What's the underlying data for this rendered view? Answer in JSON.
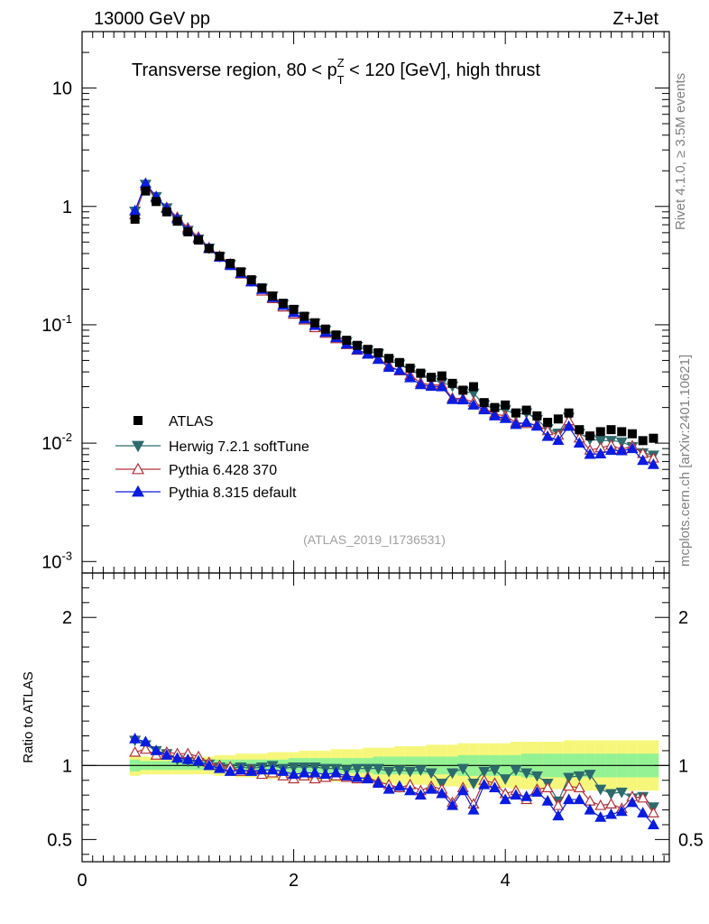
{
  "header": {
    "left": "13000 GeV pp",
    "right": "Z+Jet"
  },
  "side_texts": {
    "rivet": "Rivet 4.1.0, ≥ 3.5M events",
    "source": "mcplots.cern.ch [arXiv:2401.10621]"
  },
  "chart_data": {
    "type": "scatter",
    "title": "Transverse region, 80 < p_T^Z < 120 [GeV], high thrust",
    "title_parts": {
      "pre": "Transverse region, 80 < p",
      "sup": "Z",
      "sub": "T",
      "post": " < 120 [GeV], high thrust"
    },
    "watermark": "(ATLAS_2019_I1736531)",
    "xlim": [
      0,
      5.55
    ],
    "ylim": [
      0.0008,
      30
    ],
    "yscale": "log",
    "ratio_ylabel": "Ratio to ATLAS",
    "ratio_ylim": [
      0.35,
      2.3
    ],
    "x_ticks": [
      "0",
      "2",
      "4"
    ],
    "y_ticks": [
      {
        "base": "10",
        "exp": "-3"
      },
      {
        "base": "10",
        "exp": "-2"
      },
      {
        "base": "10",
        "exp": "-1"
      },
      {
        "base": "1",
        "exp": ""
      },
      {
        "base": "10",
        "exp": ""
      }
    ],
    "ratio_ticks": [
      "0.5",
      "1",
      "2"
    ],
    "legend": [
      "ATLAS",
      "Herwig 7.2.1 softTune",
      "Pythia 6.428 370",
      "Pythia 8.315 default"
    ],
    "x": [
      0.5,
      0.6,
      0.7,
      0.8,
      0.9,
      1.0,
      1.1,
      1.2,
      1.3,
      1.4,
      1.5,
      1.6,
      1.7,
      1.8,
      1.9,
      2.0,
      2.1,
      2.2,
      2.3,
      2.4,
      2.5,
      2.6,
      2.7,
      2.8,
      2.9,
      3.0,
      3.1,
      3.2,
      3.3,
      3.4,
      3.5,
      3.6,
      3.7,
      3.8,
      3.9,
      4.0,
      4.1,
      4.2,
      4.3,
      4.4,
      4.5,
      4.6,
      4.7,
      4.8,
      4.9,
      5.0,
      5.1,
      5.2,
      5.3,
      5.4
    ],
    "series": [
      {
        "name": "ATLAS",
        "color": "#000000",
        "marker": "square",
        "values": [
          0.78,
          1.35,
          1.1,
          0.9,
          0.75,
          0.61,
          0.52,
          0.44,
          0.38,
          0.33,
          0.28,
          0.24,
          0.205,
          0.175,
          0.152,
          0.135,
          0.118,
          0.104,
          0.092,
          0.082,
          0.074,
          0.067,
          0.062,
          0.058,
          0.052,
          0.048,
          0.043,
          0.039,
          0.036,
          0.037,
          0.032,
          0.028,
          0.03,
          0.022,
          0.02,
          0.021,
          0.018,
          0.019,
          0.017,
          0.015,
          0.016,
          0.018,
          0.013,
          0.0115,
          0.0125,
          0.013,
          0.0125,
          0.012,
          0.0105,
          0.011
        ],
        "ratio_band": {
          "inner": [
            0.04,
            0.03,
            0.03,
            0.03,
            0.03,
            0.03,
            0.03,
            0.03,
            0.04,
            0.04,
            0.04,
            0.04,
            0.04,
            0.04,
            0.04,
            0.05,
            0.05,
            0.05,
            0.05,
            0.05,
            0.05,
            0.05,
            0.05,
            0.06,
            0.06,
            0.06,
            0.06,
            0.06,
            0.06,
            0.06,
            0.06,
            0.07,
            0.07,
            0.07,
            0.07,
            0.07,
            0.07,
            0.08,
            0.08,
            0.08,
            0.08,
            0.08,
            0.08,
            0.08,
            0.08,
            0.08,
            0.08,
            0.08,
            0.08,
            0.08
          ],
          "outer": [
            0.07,
            0.06,
            0.06,
            0.06,
            0.06,
            0.06,
            0.06,
            0.06,
            0.07,
            0.07,
            0.08,
            0.08,
            0.08,
            0.09,
            0.09,
            0.09,
            0.1,
            0.1,
            0.1,
            0.11,
            0.11,
            0.11,
            0.12,
            0.12,
            0.12,
            0.13,
            0.13,
            0.13,
            0.14,
            0.14,
            0.14,
            0.15,
            0.15,
            0.15,
            0.15,
            0.15,
            0.16,
            0.16,
            0.16,
            0.16,
            0.16,
            0.17,
            0.17,
            0.17,
            0.17,
            0.17,
            0.17,
            0.17,
            0.17,
            0.17
          ]
        }
      },
      {
        "name": "Herwig 7.2.1 softTune",
        "color": "#2c6a6d",
        "marker": "triangle-down",
        "ratio": [
          1.17,
          1.14,
          1.1,
          1.08,
          1.04,
          1.03,
          1.02,
          1.01,
          0.99,
          0.98,
          0.99,
          0.98,
          0.99,
          1.0,
          0.98,
          0.99,
          0.99,
          0.99,
          0.98,
          0.98,
          0.97,
          0.98,
          0.98,
          0.98,
          0.96,
          0.97,
          0.96,
          0.97,
          0.95,
          0.88,
          0.95,
          0.98,
          0.88,
          0.96,
          0.97,
          0.91,
          0.97,
          0.95,
          0.93,
          0.88,
          0.76,
          0.92,
          0.93,
          0.94,
          0.84,
          0.81,
          0.82,
          0.78,
          0.79,
          0.72
        ]
      },
      {
        "name": "Pythia 6.428 370",
        "color": "#b0303a",
        "marker": "triangle-up-open",
        "ratio": [
          1.09,
          1.11,
          1.07,
          1.09,
          1.08,
          1.08,
          1.06,
          1.02,
          1.0,
          0.99,
          0.96,
          0.97,
          0.94,
          0.95,
          0.93,
          0.91,
          0.93,
          0.91,
          0.92,
          0.93,
          0.92,
          0.91,
          0.92,
          0.89,
          0.87,
          0.85,
          0.87,
          0.83,
          0.86,
          0.84,
          0.75,
          0.85,
          0.74,
          0.9,
          0.88,
          0.81,
          0.83,
          0.77,
          0.84,
          0.85,
          0.73,
          0.86,
          0.85,
          0.76,
          0.73,
          0.74,
          0.71,
          0.79,
          0.78,
          0.68
        ]
      },
      {
        "name": "Pythia 8.315 default",
        "color": "#0a1ce0",
        "marker": "triangle-up",
        "ratio": [
          1.18,
          1.16,
          1.1,
          1.07,
          1.05,
          1.04,
          1.03,
          1.0,
          0.98,
          0.96,
          0.97,
          0.96,
          0.97,
          0.97,
          0.96,
          0.94,
          0.95,
          0.95,
          0.94,
          0.95,
          0.93,
          0.92,
          0.91,
          0.88,
          0.84,
          0.86,
          0.83,
          0.8,
          0.84,
          0.81,
          0.73,
          0.83,
          0.7,
          0.87,
          0.85,
          0.77,
          0.8,
          0.79,
          0.82,
          0.76,
          0.66,
          0.77,
          0.77,
          0.7,
          0.65,
          0.67,
          0.69,
          0.75,
          0.68,
          0.6
        ]
      }
    ]
  }
}
